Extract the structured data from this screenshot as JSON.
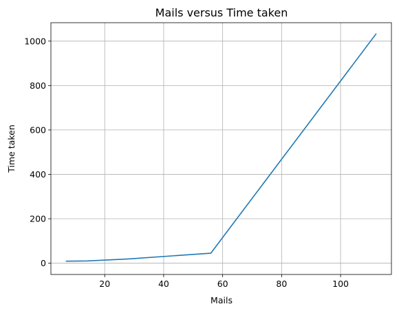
{
  "chart_data": {
    "type": "line",
    "title": "Mails versus Time taken",
    "xlabel": "Mails",
    "ylabel": "Time taken",
    "xlim": [
      1.75,
      117.25
    ],
    "ylim": [
      -51,
      1083
    ],
    "xticks": [
      20,
      40,
      60,
      80,
      100
    ],
    "yticks": [
      0,
      200,
      400,
      600,
      800,
      1000
    ],
    "grid": true,
    "series": [
      {
        "color": "#1f77b4",
        "x": [
          7,
          14,
          28,
          56,
          112
        ],
        "y": [
          9,
          10,
          19,
          45,
          1032
        ]
      }
    ]
  }
}
